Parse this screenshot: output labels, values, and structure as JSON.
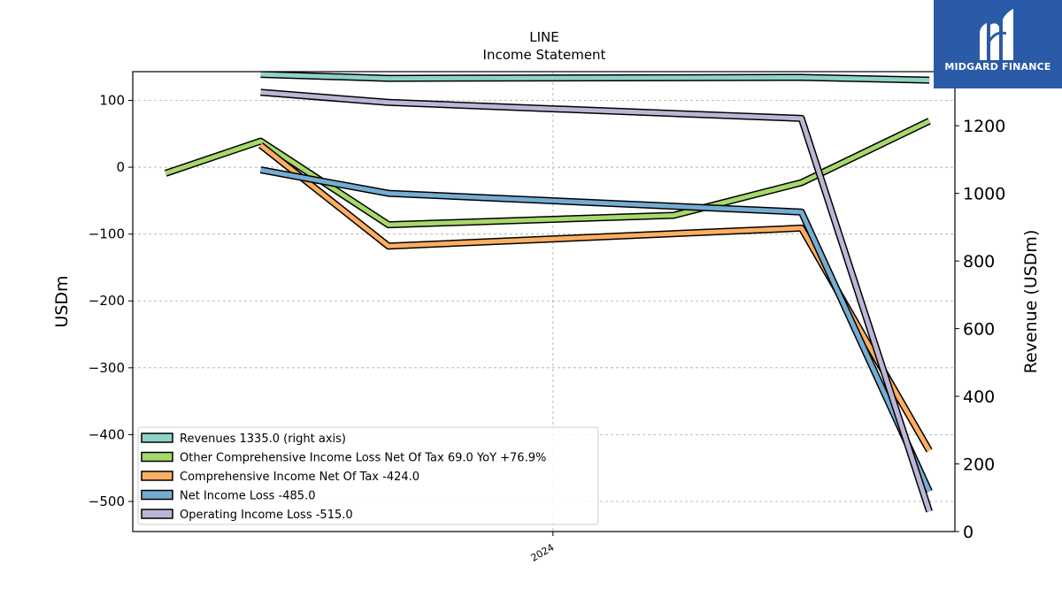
{
  "chart_data": {
    "type": "line",
    "title": "LINE",
    "subtitle": "Income Statement",
    "ylabel_left": "USDm",
    "ylabel_right": "Revenue (USDm)",
    "x_ticks": [
      {
        "x": 2024.0,
        "label": "2024"
      }
    ],
    "xlim": [
      2022.85,
      2025.1
    ],
    "ylim_left": [
      -545,
      143
    ],
    "ylim_right": [
      0,
      1360
    ],
    "yticks_left": [
      100,
      0,
      -100,
      -200,
      -300,
      -400,
      -500
    ],
    "yticks_left_labels": [
      "100",
      "0",
      "−100",
      "−200",
      "−300",
      "−400",
      "−500"
    ],
    "yticks_right": [
      1200,
      1000,
      800,
      600,
      400,
      200,
      0
    ],
    "yticks_right_labels": [
      "1200",
      "1000",
      "800",
      "600",
      "400",
      "200",
      "0"
    ],
    "grid": true,
    "legend_position": "lower-left",
    "series": [
      {
        "name": "Revenues",
        "legend": "Revenues  1335.0 (right axis)",
        "axis": "right",
        "color": "#8dd3c7",
        "x": [
          2023.2,
          2023.55,
          2024.68,
          2025.03
        ],
        "y": [
          1352,
          1340,
          1343,
          1335
        ]
      },
      {
        "name": "Other Comprehensive Income Loss Net Of Tax",
        "legend": "Other Comprehensive Income Loss Net Of Tax  69.0 YoY +76.9%",
        "axis": "left",
        "color": "#a6d96a",
        "x": [
          2022.94,
          2023.2,
          2023.55,
          2024.33,
          2024.68,
          2025.03
        ],
        "y": [
          -9,
          39,
          -86,
          -72,
          -23,
          69
        ]
      },
      {
        "name": "Comprehensive Income Net Of Tax",
        "legend": "Comprehensive Income Net Of Tax  -424.0",
        "axis": "left",
        "color": "#fdae61",
        "x": [
          2023.2,
          2023.55,
          2024.68,
          2025.03
        ],
        "y": [
          33,
          -118,
          -91,
          -424
        ]
      },
      {
        "name": "Net Income Loss",
        "legend": "Net Income Loss  -485.0",
        "axis": "left",
        "color": "#74add1",
        "x": [
          2023.2,
          2023.55,
          2024.68,
          2025.03
        ],
        "y": [
          -4,
          -39,
          -67,
          -485
        ]
      },
      {
        "name": "Operating Income Loss",
        "legend": "Operating Income Loss  -515.0",
        "axis": "left",
        "color": "#bcb6d6",
        "x": [
          2023.2,
          2023.55,
          2024.68,
          2025.03
        ],
        "y": [
          112,
          97,
          73,
          -515
        ]
      }
    ]
  },
  "logo": {
    "name": "MIDGARD FINANCE"
  }
}
